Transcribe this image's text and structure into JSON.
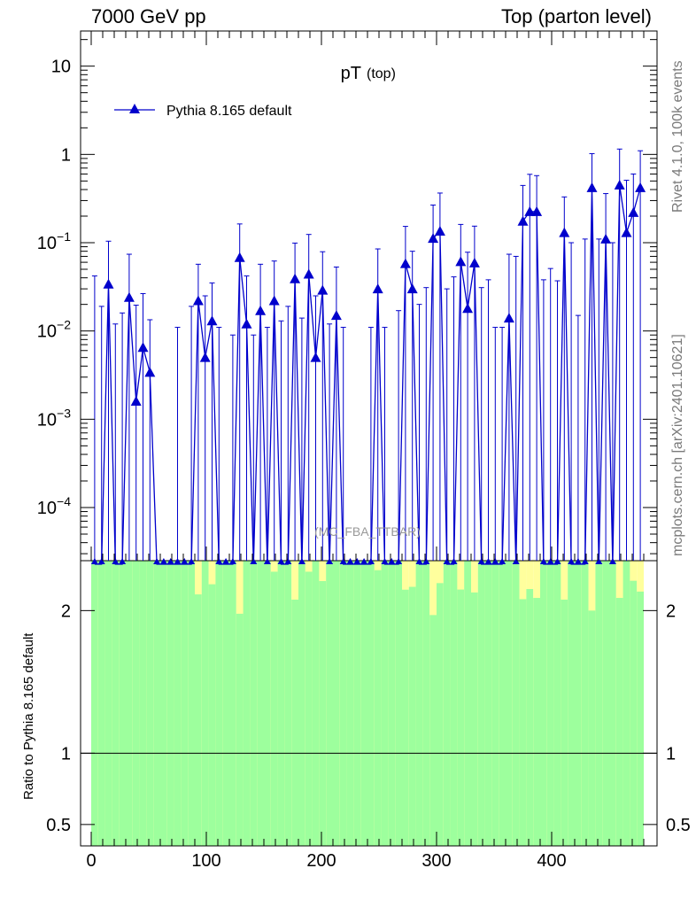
{
  "header": {
    "left": "7000 GeV pp",
    "right": "Top (parton level)"
  },
  "side": {
    "rivet": "Rivet 4.1.0,  100k events",
    "mcplots": "mcplots.cern.ch [arXiv:2401.10621]"
  },
  "chart_data": {
    "type": "line",
    "title": "pT",
    "title_sub": "(top)",
    "watermark": "(MC_FBA_TTBAR)",
    "xlabel": "",
    "ylabel": "",
    "yscale": "log",
    "ylim": [
      2.5e-05,
      25
    ],
    "xlim": [
      -10,
      490
    ],
    "x_ticks": [
      0,
      100,
      200,
      300,
      400
    ],
    "x_tick_labels": [
      "0",
      "100",
      "200",
      "300",
      "400"
    ],
    "y_ticks": [
      0.0001,
      0.001,
      0.01,
      0.1,
      1,
      10
    ],
    "y_tick_labels": [
      "10^-4",
      "10^-3",
      "10^-2",
      "10^-1",
      "1",
      "10"
    ],
    "legend": {
      "position": "top-left",
      "entries": [
        "Pythia 8.165 default"
      ]
    },
    "series": [
      {
        "name": "Pythia 8.165 default",
        "color": "#0000cc",
        "marker": "triangle",
        "x": [
          3,
          9,
          15,
          21,
          27,
          33,
          39,
          45,
          51,
          57,
          63,
          69,
          75,
          81,
          87,
          93,
          99,
          105,
          111,
          117,
          123,
          129,
          135,
          141,
          147,
          153,
          159,
          165,
          171,
          177,
          183,
          189,
          195,
          201,
          207,
          213,
          219,
          225,
          231,
          237,
          243,
          249,
          255,
          261,
          267,
          273,
          279,
          285,
          291,
          297,
          303,
          309,
          315,
          321,
          327,
          333,
          339,
          345,
          351,
          357,
          363,
          369,
          375,
          381,
          387,
          393,
          399,
          405,
          411,
          417,
          423,
          429,
          435,
          441,
          447,
          453,
          459,
          465,
          471,
          477
        ],
        "y": [
          0,
          0,
          0.034,
          0,
          0,
          0.024,
          0.0016,
          0.0065,
          0.0034,
          0,
          0,
          0,
          0,
          0,
          0,
          0.022,
          0.005,
          0.013,
          0,
          0,
          0,
          0.068,
          0.012,
          0,
          0.017,
          0,
          0.022,
          0,
          0,
          0.039,
          0,
          0.044,
          0.005,
          0.029,
          0,
          0.015,
          0,
          0,
          0,
          0,
          0,
          0.03,
          0,
          0,
          0,
          0.058,
          0.03,
          0,
          0,
          0.112,
          0.135,
          0,
          0,
          0.061,
          0.018,
          0.059,
          0,
          0,
          0,
          0,
          0.014,
          0,
          0.175,
          0.225,
          0.225,
          0,
          0,
          0,
          0.13,
          0,
          0,
          0,
          0.42,
          0,
          0.11,
          0,
          0.45,
          0.13,
          0.22,
          0.42
        ],
        "y_err_upper": [
          0.042,
          0.019,
          0.07,
          0.012,
          0.016,
          0.05,
          0.018,
          0.02,
          0.01,
          0,
          0,
          0,
          0.011,
          0,
          0.019,
          0.035,
          0.02,
          0.022,
          0.011,
          0,
          0.009,
          0.095,
          0.03,
          0.009,
          0.04,
          0.011,
          0.04,
          0.013,
          0.019,
          0.06,
          0.014,
          0.08,
          0.02,
          0.05,
          0.012,
          0.038,
          0.011,
          0,
          0,
          0,
          0.011,
          0.055,
          0.011,
          0,
          0.017,
          0.095,
          0.05,
          0.02,
          0.031,
          0.155,
          0.23,
          0.03,
          0.041,
          0.1,
          0.06,
          0.095,
          0.031,
          0.038,
          0.011,
          0.011,
          0.06,
          0.07,
          0.27,
          0.37,
          0.35,
          0.038,
          0.051,
          0.037,
          0.2,
          0.1,
          0.015,
          0.11,
          0.6,
          0.11,
          0.25,
          0.1,
          0.7,
          0.38,
          0.38,
          0.68
        ]
      }
    ],
    "ratio": {
      "ylabel": "Ratio to Pythia 8.165 default",
      "ylim": [
        0.35,
        2.35
      ],
      "y_ticks": [
        0.5,
        1,
        2
      ],
      "y_tick_labels": [
        "0.5",
        "1",
        "2"
      ],
      "reference_line": 1,
      "band_colors": {
        "stat": "#9dff9d",
        "total": "#ffff9d"
      }
    }
  }
}
